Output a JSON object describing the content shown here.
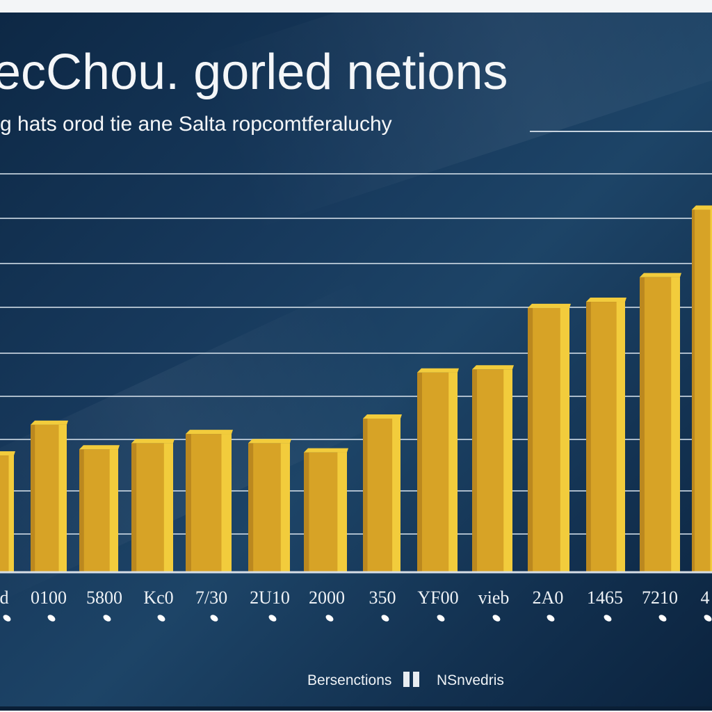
{
  "chart_data": {
    "type": "bar",
    "title": "ecChou. gorled netions",
    "subtitle": "g hats orod tie ane Salta ropcomtferaluchy",
    "categories": [
      "d",
      "0100",
      "5800",
      "Kc0",
      "7/30",
      "2U10",
      "2000",
      "350",
      "YF00",
      "vieb",
      "2A0",
      "1465",
      "7210",
      "4"
    ],
    "values": [
      38,
      48,
      40,
      42,
      45,
      42,
      39,
      50,
      65,
      66,
      86,
      88,
      96,
      118
    ],
    "ylim": [
      0,
      150
    ],
    "grid": true,
    "legend": {
      "placement": "bottom-center",
      "items": [
        "Bersenctions",
        "NSnvedris"
      ]
    },
    "colors": {
      "bar": "#d7a326",
      "bar_highlight": "#f2cc3c",
      "bar_shadow": "#a8761a",
      "grid": "#c6d2de"
    }
  }
}
